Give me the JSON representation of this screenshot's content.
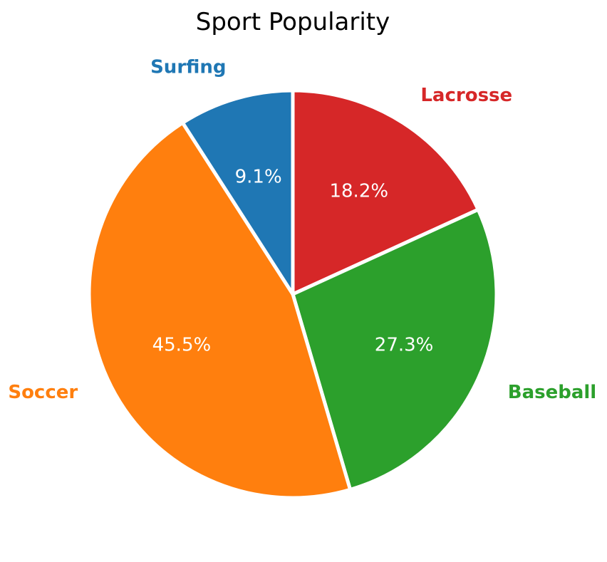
{
  "chart_data": {
    "type": "pie",
    "title": "Sport Popularity",
    "start_angle_deg": 90,
    "direction": "clockwise",
    "slices": [
      {
        "label": "Lacrosse",
        "value": 18.2,
        "pct_label": "18.2%",
        "color": "#d62728"
      },
      {
        "label": "Baseball",
        "value": 27.3,
        "pct_label": "27.3%",
        "color": "#2ca02c"
      },
      {
        "label": "Soccer",
        "value": 45.5,
        "pct_label": "45.5%",
        "color": "#ff7f0e"
      },
      {
        "label": "Surfing",
        "value": 9.1,
        "pct_label": "9.1%",
        "color": "#1f77b4"
      }
    ],
    "wedge_edge_color": "#ffffff"
  }
}
